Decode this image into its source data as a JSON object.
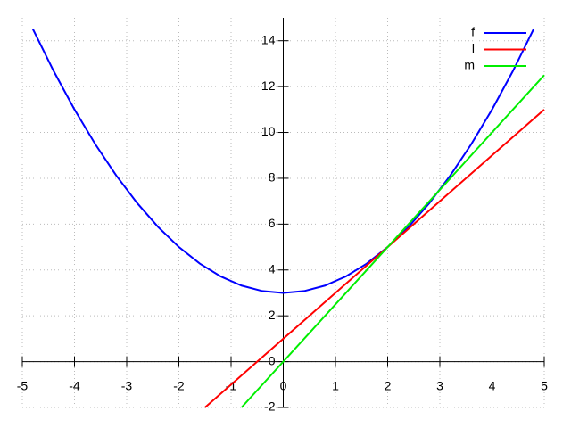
{
  "chart_data": {
    "type": "line",
    "xlim": [
      -5,
      5
    ],
    "ylim": [
      -2,
      15
    ],
    "xticks": [
      -5,
      -4,
      -3,
      -2,
      -1,
      0,
      1,
      2,
      3,
      4,
      5
    ],
    "yticks": [
      -2,
      0,
      2,
      4,
      6,
      8,
      10,
      12,
      14
    ],
    "grid": true,
    "legend": "top-right",
    "series": [
      {
        "name": "f",
        "color": "#0000ff",
        "x": [
          -4.8,
          -4.4,
          -4.0,
          -3.6,
          -3.2,
          -2.8,
          -2.4,
          -2.0,
          -1.6,
          -1.2,
          -0.8,
          -0.4,
          0,
          0.4,
          0.8,
          1.2,
          1.6,
          2.0,
          2.4,
          2.8,
          3.2,
          3.6,
          4.0,
          4.4,
          4.8
        ],
        "values": [
          14.52,
          12.68,
          11,
          9.48,
          8.12,
          6.92,
          5.88,
          5,
          4.28,
          3.72,
          3.32,
          3.08,
          3,
          3.08,
          3.32,
          3.72,
          4.28,
          5,
          5.88,
          6.92,
          8.12,
          9.48,
          11,
          12.68,
          14.52
        ]
      },
      {
        "name": "l",
        "color": "#ff0000",
        "x": [
          -1.5,
          5
        ],
        "values": [
          -2,
          11
        ]
      },
      {
        "name": "m",
        "color": "#00ee00",
        "x": [
          -0.8,
          5
        ],
        "values": [
          -2,
          12.5
        ]
      }
    ]
  }
}
